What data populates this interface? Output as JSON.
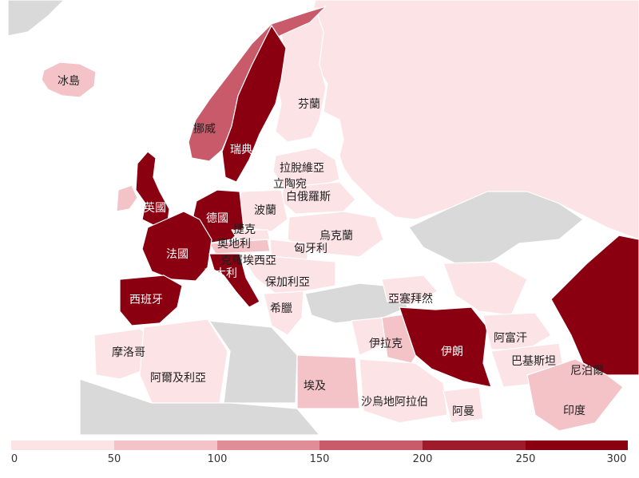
{
  "colors": {
    "no_data": "#d9d9d9",
    "sea": "#ffffff",
    "scale": [
      "#fbe3e6",
      "#f3c3c8",
      "#e08d98",
      "#c85a6a",
      "#9e1b2c",
      "#8b0010"
    ]
  },
  "countries": {
    "iceland": "冰島",
    "finland": "芬蘭",
    "norway": "挪威",
    "sweden": "瑞典",
    "latvia": "拉脫維亞",
    "lithuania": "立陶宛",
    "belarus": "白俄羅斯",
    "uk": "英國",
    "germany": "德國",
    "poland": "波蘭",
    "czech": "捷克",
    "ukraine": "烏克蘭",
    "austria": "奧地利",
    "hungary": "匈牙利",
    "france": "法國",
    "croatia": "克羅埃西亞",
    "italy": "義大利",
    "bulgaria": "保加利亞",
    "spain": "西班牙",
    "azerbaijan": "亞塞拜然",
    "greece": "希臘",
    "morocco": "摩洛哥",
    "afghanistan": "阿富汗",
    "iraq": "伊拉克",
    "iran": "伊朗",
    "pakistan": "巴基斯坦",
    "nepal": "尼泊爾",
    "algeria": "阿爾及利亞",
    "egypt": "埃及",
    "saudi_arabia": "沙烏地阿拉伯",
    "oman": "阿曼",
    "india": "印度"
  },
  "legend": {
    "ticks": [
      "0",
      "50",
      "100",
      "150",
      "200",
      "250",
      "300"
    ],
    "min": 0,
    "max": 300
  }
}
